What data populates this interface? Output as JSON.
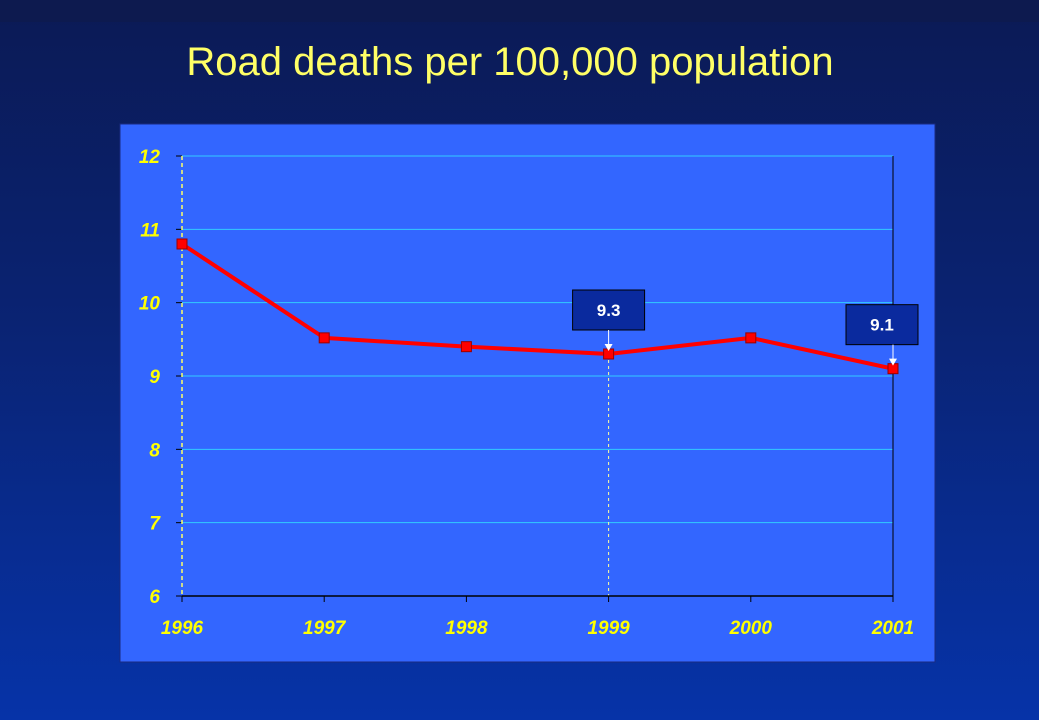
{
  "slide": {
    "title": "Road deaths per 100,000 population"
  },
  "chart_data": {
    "type": "line",
    "title": "Road deaths per 100,000 population",
    "xlabel": "",
    "ylabel": "",
    "categories": [
      "1996",
      "1997",
      "1998",
      "1999",
      "2000",
      "2001"
    ],
    "series": [
      {
        "values": [
          10.8,
          9.52,
          9.4,
          9.3,
          9.52,
          9.1
        ]
      }
    ],
    "ylim": [
      6,
      12
    ],
    "yticks": [
      6,
      7,
      8,
      9,
      10,
      11,
      12
    ],
    "grid": true,
    "legend": "none",
    "annotations": [
      {
        "category": "1999",
        "value": 9.3,
        "text": "9.3"
      },
      {
        "category": "2001",
        "value": 9.1,
        "text": "9.1"
      }
    ],
    "colors": {
      "plot_background": "#3366ff",
      "line": "#ff0000",
      "gridline": "#33ccff",
      "tick_label": "#ffff00",
      "callout_fill": "#0a2a9e"
    }
  }
}
